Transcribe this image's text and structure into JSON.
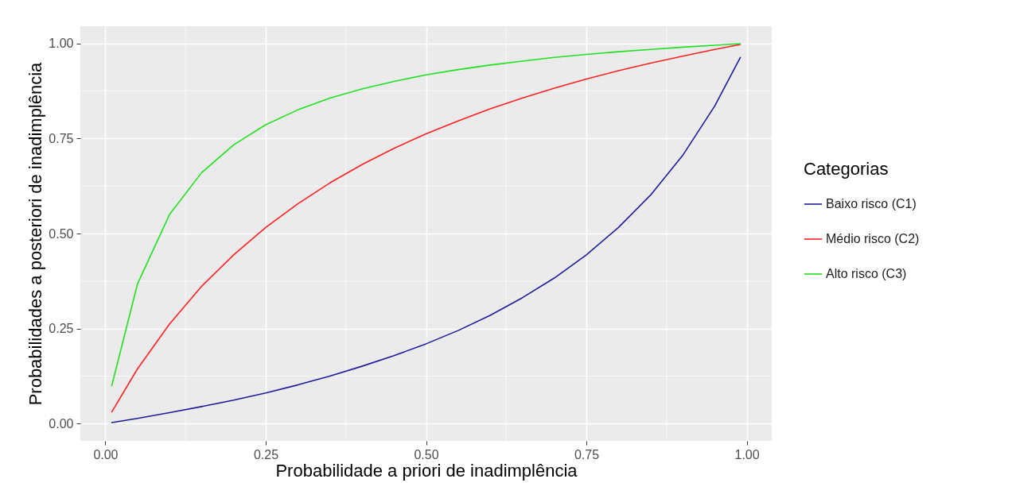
{
  "chart_data": {
    "type": "line",
    "xlabel": "Probabilidade a priori de inadimplência",
    "ylabel": "Probabilidades a posteriori de inadimplência",
    "legend_title": "Categorias",
    "legend": "right",
    "grid": true,
    "x": [
      0.01,
      0.05,
      0.1,
      0.15,
      0.2,
      0.25,
      0.3,
      0.35,
      0.4,
      0.45,
      0.5,
      0.55,
      0.6,
      0.65,
      0.7,
      0.75,
      0.8,
      0.85,
      0.9,
      0.95,
      0.99
    ],
    "series": [
      {
        "name": "Baixo risco (C1)",
        "color": "#1c1c9c",
        "values": [
          0.003,
          0.014,
          0.029,
          0.045,
          0.062,
          0.081,
          0.102,
          0.125,
          0.151,
          0.179,
          0.21,
          0.245,
          0.285,
          0.331,
          0.383,
          0.444,
          0.516,
          0.601,
          0.705,
          0.835,
          0.963
        ]
      },
      {
        "name": "Médio risco (C2)",
        "color": "#ff2020",
        "values": [
          0.031,
          0.144,
          0.262,
          0.361,
          0.444,
          0.516,
          0.578,
          0.633,
          0.681,
          0.724,
          0.762,
          0.796,
          0.828,
          0.856,
          0.882,
          0.906,
          0.928,
          0.948,
          0.966,
          0.984,
          0.997
        ]
      },
      {
        "name": "Alto risco (C3)",
        "color": "#20e020",
        "values": [
          0.1,
          0.367,
          0.55,
          0.66,
          0.733,
          0.786,
          0.825,
          0.856,
          0.88,
          0.9,
          0.917,
          0.931,
          0.943,
          0.953,
          0.963,
          0.971,
          0.978,
          0.984,
          0.99,
          0.995,
          0.999
        ]
      }
    ],
    "xlim": [
      -0.039,
      1.039
    ],
    "ylim": [
      -0.045,
      1.045
    ],
    "xticks": [
      {
        "value": 0,
        "label": "0.00"
      },
      0.25,
      {
        "value": 0.5,
        "label": "0.50"
      },
      0.75,
      {
        "value": 1,
        "label": "1.00"
      }
    ],
    "yticks": [
      {
        "value": 0,
        "label": "0.00"
      },
      0.25,
      {
        "value": 0.5,
        "label": "0.50"
      },
      0.75,
      {
        "value": 1,
        "label": "1.00"
      }
    ]
  }
}
